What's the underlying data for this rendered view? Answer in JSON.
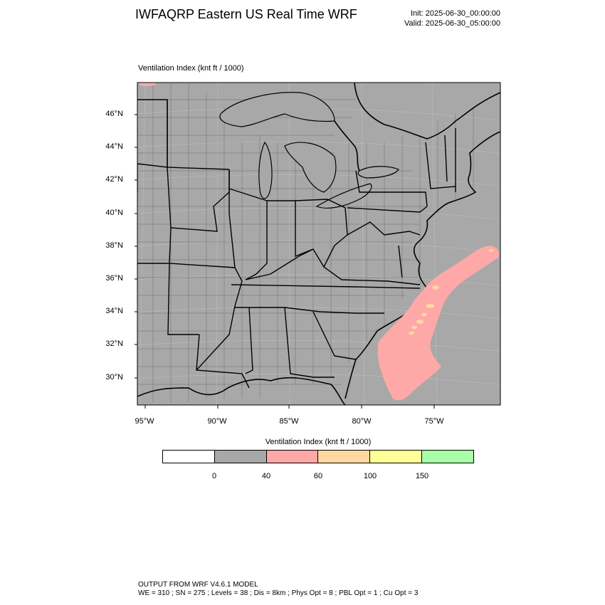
{
  "header": {
    "title": "IWFAQRP Eastern US Real Time WRF",
    "init": "Init: 2025-06-30_00:00:00",
    "valid": "Valid: 2025-06-30_05:00:00"
  },
  "map": {
    "field_label": "Ventilation Index   (knt ft / 1000)",
    "land_color": "#a8a8a8",
    "water_color": "#a8a8a8",
    "lat_labels": [
      "46°N",
      "44°N",
      "42°N",
      "40°N",
      "38°N",
      "36°N",
      "34°N",
      "32°N",
      "30°N"
    ],
    "lon_labels": [
      "95°W",
      "90°W",
      "85°W",
      "80°W",
      "75°W"
    ]
  },
  "colorbar": {
    "title": "Ventilation Index  (knt ft / 1000)",
    "colors": [
      "#ffffff",
      "#a8a8a8",
      "#ffa8a8",
      "#ffd8a0",
      "#ffff98",
      "#a8ffa8"
    ],
    "tick_labels": [
      "0",
      "40",
      "60",
      "100",
      "150"
    ]
  },
  "footer": {
    "line1": "OUTPUT FROM WRF V4.6.1 MODEL",
    "line2": "WE = 310 ; SN = 275 ; Levels = 38 ; Dis = 8km ; Phys Opt = 8 ; PBL Opt = 1 ; Cu Opt = 3"
  }
}
